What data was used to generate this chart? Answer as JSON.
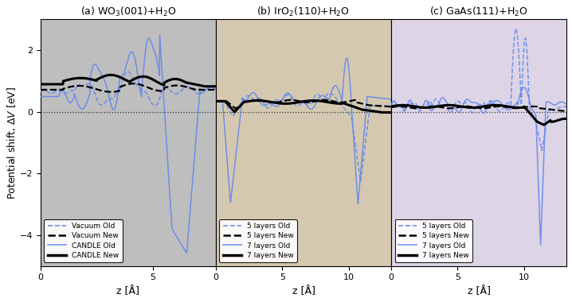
{
  "titles": [
    "(a) WO$_3$(001)+H$_2$O",
    "(b) IrO$_2$(110)+H$_2$O",
    "(c) GaAs(111)+H$_2$O"
  ],
  "xlabel": "z [Å]",
  "ylabel": "Potential shift, $\\Delta V$ [eV]",
  "ylim": [
    -5.0,
    3.0
  ],
  "yticks": [
    -4,
    -2,
    0,
    2
  ],
  "blue_color": "#6688ee",
  "black_color": "#000000",
  "panel_a": {
    "xlim": [
      0,
      7.8
    ],
    "xticks": [
      0,
      5
    ],
    "legend": [
      "Vacuum Old",
      "Vacuum New",
      "CANDLE Old",
      "CANDLE New"
    ],
    "bg_color": "#c8c8c8"
  },
  "panel_b": {
    "xlim": [
      0,
      13.2
    ],
    "xticks": [
      0,
      5,
      10
    ],
    "legend": [
      "5 layers Old",
      "5 layers New",
      "7 layers Old",
      "7 layers New"
    ],
    "bg_color": "#d8d0c0"
  },
  "panel_c": {
    "xlim": [
      0,
      13.2
    ],
    "xticks": [
      0,
      5,
      10
    ],
    "legend": [
      "5 layers Old",
      "5 layers New",
      "7 layers Old",
      "7 layers New"
    ],
    "bg_color": "#e0d8e8"
  }
}
